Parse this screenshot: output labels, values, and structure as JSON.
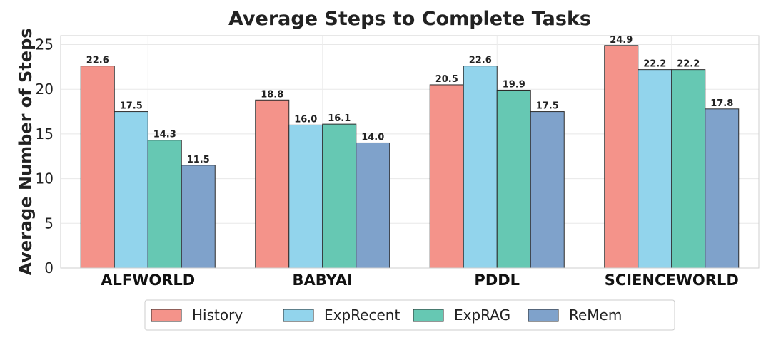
{
  "chart_data": {
    "type": "bar",
    "title": "Average Steps to Complete Tasks",
    "xlabel": "",
    "ylabel": "Average Number of Steps",
    "categories": [
      "ALFWORLD",
      "BABYAI",
      "PDDL",
      "SCIENCEWORLD"
    ],
    "series": [
      {
        "name": "History",
        "color": "#F4938A",
        "values": [
          22.6,
          18.8,
          20.5,
          24.9
        ]
      },
      {
        "name": "ExpRecent",
        "color": "#92D4EC",
        "values": [
          17.5,
          16.0,
          22.6,
          22.2
        ]
      },
      {
        "name": "ExpRAG",
        "color": "#66C8B3",
        "values": [
          14.3,
          16.1,
          19.9,
          22.2
        ]
      },
      {
        "name": "ReMem",
        "color": "#7FA2CB",
        "values": [
          11.5,
          14.0,
          17.5,
          17.8
        ]
      }
    ],
    "ylim": [
      0,
      26
    ],
    "yticks": [
      0,
      5,
      10,
      15,
      20,
      25
    ],
    "grid": true,
    "legend": "bottom-center"
  }
}
